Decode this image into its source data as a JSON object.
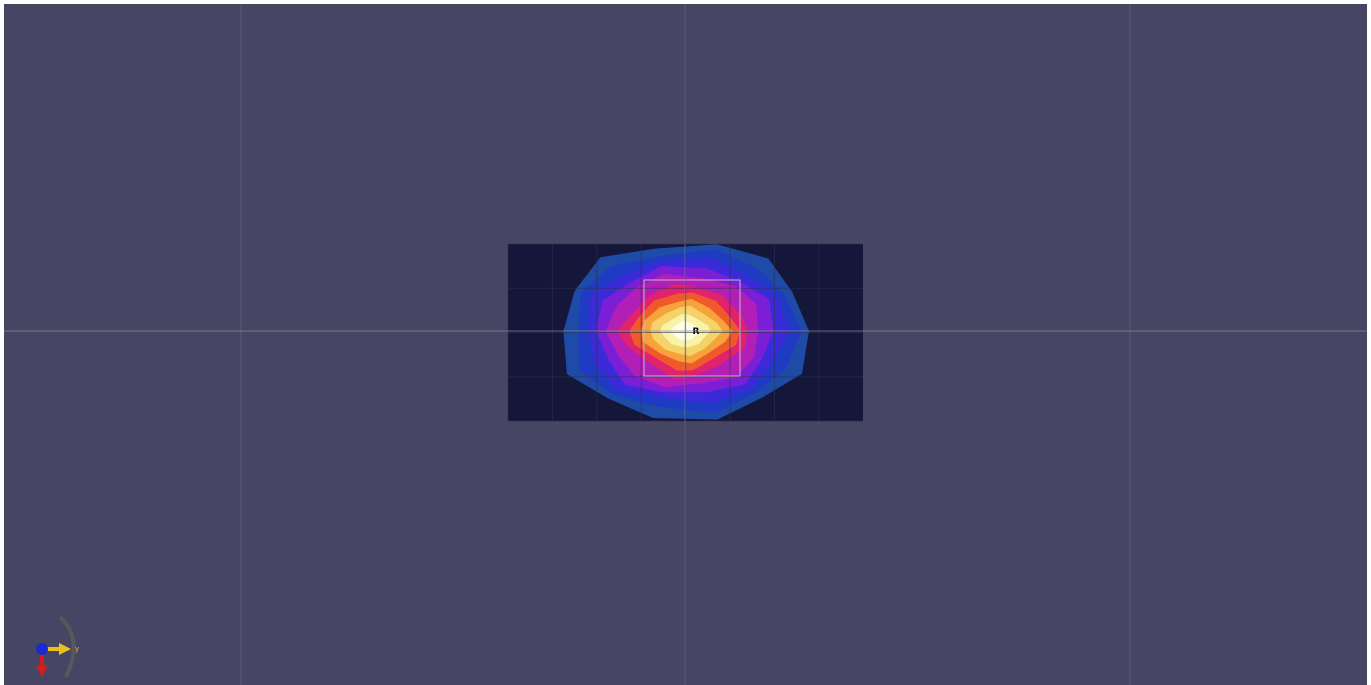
{
  "viewport": {
    "background": "#464664",
    "grid_color": "#5a5a76",
    "axis_line_color": "#8a8aa0"
  },
  "heatmap": {
    "background": "#14163a",
    "cell_grid_color": "#2e3050",
    "color_levels": [
      "#1e4aa8",
      "#1f3bc4",
      "#3a2ad8",
      "#7a1fd6",
      "#b21fb6",
      "#e0236c",
      "#f05a2a",
      "#f7a23a",
      "#f3d36a",
      "#f8f3a8",
      "#ffffe8"
    ],
    "center_label": "R",
    "selection_box_color": "#c8b4c8"
  },
  "gizmo": {
    "x_axis_color": "#d41c1c",
    "y_axis_color": "#e8c21a",
    "z_axis_color": "#1a2ad0",
    "y_label": "y"
  }
}
